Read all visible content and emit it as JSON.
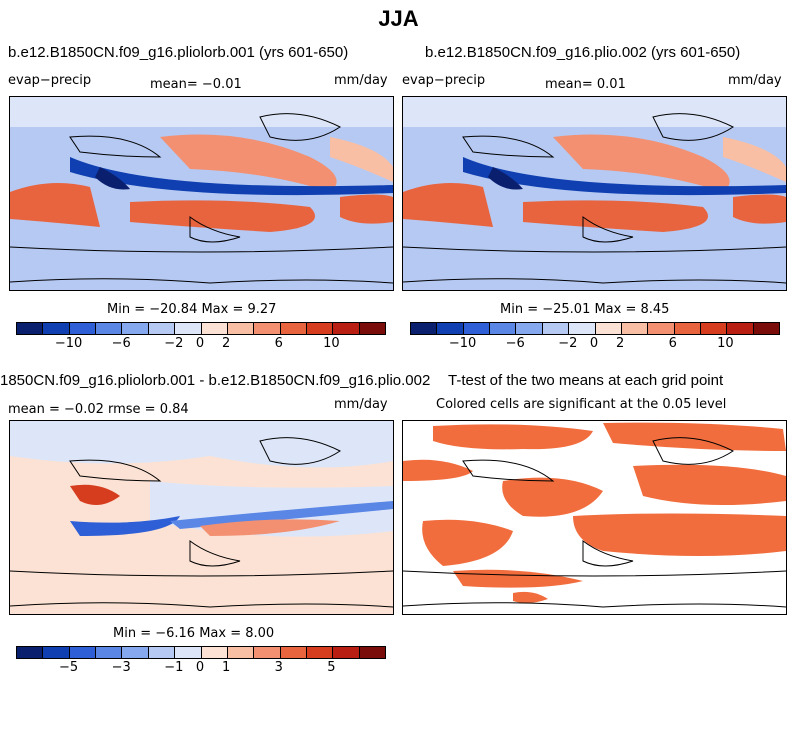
{
  "main_title": "JJA",
  "palette": [
    "#0a1f6e",
    "#0f3fb0",
    "#2e5fd6",
    "#5a86e6",
    "#86a8ee",
    "#b5c9f3",
    "#dde6f8",
    "#fbe2d4",
    "#f8bfa5",
    "#f39071",
    "#e8643f",
    "#d63c1e",
    "#b81e12",
    "#7a0d0a"
  ],
  "panels": {
    "top_left": {
      "title": "b.e12.B1850CN.f09_g16.pliolorb.001 (yrs 601-650)",
      "left_label": "evap−precip",
      "mean_text": "mean=  −0.01",
      "unit": "mm/day",
      "minmax": "Min = −20.84 Max =   9.27",
      "ticks": [
        "−10",
        "−6",
        "−2",
        "0",
        "2",
        "6",
        "10"
      ]
    },
    "top_right": {
      "title": "b.e12.B1850CN.f09_g16.plio.002 (yrs 601-650)",
      "left_label": "evap−precip",
      "mean_text": "mean=  0.01",
      "unit": "mm/day",
      "minmax": "Min = −25.01 Max =   8.45",
      "ticks": [
        "−10",
        "−6",
        "−2",
        "0",
        "2",
        "6",
        "10"
      ]
    },
    "bottom_left": {
      "title": "1850CN.f09_g16.pliolorb.001 - b.e12.B1850CN.f09_g16.plio.002",
      "stats_text": "mean =  −0.02     rmse =    0.84",
      "unit": "mm/day",
      "minmax": "Min =  −6.16 Max =   8.00",
      "ticks": [
        "−5",
        "−3",
        "−1",
        "0",
        "1",
        "3",
        "5"
      ]
    },
    "bottom_right": {
      "title": "T-test of the two means at each grid point",
      "subtitle": "Colored cells are significant at the 0.05 level",
      "sig_color": "#f26d3d"
    }
  },
  "chart_data": [
    {
      "type": "heatmap",
      "title": "b.e12.B1850CN.f09_g16.pliolorb.001 (yrs 601-650)",
      "variable": "evap−precip",
      "units": "mm/day",
      "mean": -0.01,
      "min": -20.84,
      "max": 9.27,
      "colorbar_ticks": [
        -10,
        -6,
        -2,
        0,
        2,
        6,
        10
      ]
    },
    {
      "type": "heatmap",
      "title": "b.e12.B1850CN.f09_g16.plio.002 (yrs 601-650)",
      "variable": "evap−precip",
      "units": "mm/day",
      "mean": 0.01,
      "min": -25.01,
      "max": 8.45,
      "colorbar_ticks": [
        -10,
        -6,
        -2,
        0,
        2,
        6,
        10
      ]
    },
    {
      "type": "heatmap",
      "title": "1850CN.f09_g16.pliolorb.001 - b.e12.B1850CN.f09_g16.plio.002",
      "units": "mm/day",
      "mean": -0.02,
      "rmse": 0.84,
      "min": -6.16,
      "max": 8.0,
      "colorbar_ticks": [
        -5,
        -3,
        -1,
        0,
        1,
        3,
        5
      ]
    },
    {
      "type": "heatmap",
      "title": "T-test of the two means at each grid point",
      "note": "Colored cells are significant at the 0.05 level"
    }
  ]
}
